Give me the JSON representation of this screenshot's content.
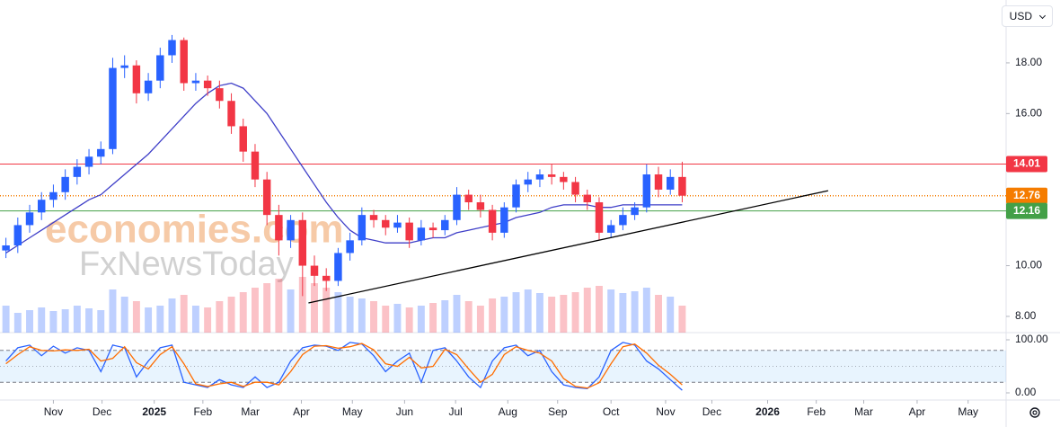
{
  "usd_button": "USD",
  "watermark": [
    "economies.com",
    "FxNewsToday"
  ],
  "chart_data": {
    "type": "candlestick",
    "open": [
      10.6,
      10.8,
      11.6,
      12.1,
      12.6,
      12.9,
      13.5,
      13.9,
      14.3,
      14.6,
      17.8,
      17.9,
      16.8,
      17.3,
      18.3,
      18.9,
      17.2,
      17.3,
      17.0,
      16.5,
      15.5,
      14.5,
      13.4,
      12.0,
      11.0,
      11.8,
      10.0,
      9.6,
      9.4,
      10.5,
      11.0,
      12.0,
      11.8,
      11.5,
      11.7,
      11.0,
      11.5,
      11.4,
      11.8,
      12.8,
      12.5,
      12.2,
      11.3,
      12.3,
      13.2,
      13.4,
      13.6,
      13.5,
      13.3,
      12.8,
      12.5,
      11.3,
      11.6,
      12.0,
      12.3,
      13.6,
      13.0,
      13.5
    ],
    "high": [
      11.1,
      11.9,
      12.4,
      12.9,
      13.2,
      13.8,
      14.2,
      14.6,
      14.9,
      18.2,
      18.3,
      18.1,
      17.6,
      18.6,
      19.1,
      19.0,
      17.6,
      17.5,
      17.3,
      16.8,
      15.8,
      14.8,
      13.7,
      12.4,
      12.0,
      12.1,
      10.4,
      9.9,
      10.7,
      11.3,
      12.3,
      12.2,
      12.0,
      12.0,
      11.9,
      11.8,
      11.7,
      12.0,
      13.1,
      13.0,
      12.8,
      12.4,
      12.5,
      13.4,
      13.7,
      13.8,
      14.0,
      13.7,
      13.5,
      13.0,
      12.7,
      11.8,
      12.3,
      12.5,
      14.0,
      13.9,
      13.8,
      14.1
    ],
    "low": [
      10.3,
      10.5,
      11.3,
      11.8,
      12.3,
      12.6,
      13.2,
      13.6,
      14.0,
      14.4,
      17.4,
      16.4,
      16.5,
      17.0,
      18.0,
      16.9,
      16.9,
      16.7,
      16.2,
      15.2,
      14.1,
      13.1,
      11.6,
      10.4,
      10.7,
      8.8,
      9.2,
      9.0,
      9.2,
      10.2,
      10.8,
      11.5,
      11.2,
      11.3,
      10.7,
      10.8,
      11.1,
      11.2,
      11.6,
      12.2,
      11.9,
      11.0,
      11.1,
      12.1,
      12.9,
      13.1,
      13.2,
      13.0,
      12.5,
      12.2,
      11.0,
      11.1,
      11.4,
      11.8,
      12.1,
      12.7,
      12.8,
      12.5
    ],
    "close": [
      10.8,
      11.6,
      12.1,
      12.6,
      12.9,
      13.5,
      13.9,
      14.3,
      14.6,
      17.8,
      17.9,
      16.8,
      17.3,
      18.3,
      18.9,
      17.2,
      17.3,
      17.0,
      16.5,
      15.5,
      14.5,
      13.4,
      12.0,
      11.0,
      11.8,
      10.0,
      9.6,
      9.4,
      10.5,
      11.0,
      12.0,
      11.8,
      11.5,
      11.7,
      11.0,
      11.5,
      11.4,
      11.8,
      12.8,
      12.5,
      12.2,
      11.3,
      12.3,
      13.2,
      13.4,
      13.6,
      13.5,
      13.3,
      12.8,
      12.5,
      11.3,
      11.6,
      12.0,
      12.3,
      13.6,
      13.0,
      13.5,
      12.76
    ],
    "up_color": "#2962ff",
    "down_color": "#f23645",
    "volume": [
      30,
      22,
      25,
      28,
      24,
      26,
      30,
      27,
      25,
      48,
      40,
      35,
      28,
      30,
      38,
      42,
      30,
      28,
      35,
      40,
      45,
      50,
      55,
      60,
      48,
      62,
      55,
      50,
      45,
      40,
      38,
      35,
      30,
      32,
      28,
      30,
      33,
      36,
      42,
      35,
      30,
      38,
      40,
      45,
      48,
      44,
      40,
      42,
      45,
      50,
      52,
      48,
      44,
      46,
      50,
      42,
      40,
      30
    ],
    "ma": {
      "color": "#3f3fc8",
      "values": [
        10.5,
        10.8,
        11.1,
        11.4,
        11.7,
        12.0,
        12.3,
        12.6,
        12.8,
        13.2,
        13.6,
        14.0,
        14.4,
        14.9,
        15.4,
        15.9,
        16.4,
        16.8,
        17.1,
        17.2,
        17.0,
        16.5,
        16.0,
        15.3,
        14.6,
        13.9,
        13.2,
        12.5,
        11.9,
        11.4,
        11.1,
        11.0,
        10.9,
        10.9,
        10.9,
        11.0,
        11.1,
        11.1,
        11.3,
        11.4,
        11.5,
        11.6,
        11.7,
        11.9,
        12.0,
        12.1,
        12.3,
        12.4,
        12.4,
        12.4,
        12.3,
        12.3,
        12.4,
        12.4,
        12.4,
        12.4,
        12.4,
        12.4
      ]
    },
    "ylim": [
      7.36,
      20.48
    ],
    "yticks": [
      {
        "value": 8,
        "label": "8.00"
      },
      {
        "value": 10,
        "label": "10.00"
      },
      {
        "value": 16,
        "label": "16.00"
      },
      {
        "value": 18,
        "label": "18.00"
      }
    ],
    "xlim": [
      -0.5,
      84.3
    ],
    "xticks": [
      {
        "value": 4.0,
        "label": "Nov"
      },
      {
        "value": 8.1,
        "label": "Dec"
      },
      {
        "value": 12.5,
        "label": "2025"
      },
      {
        "value": 16.6,
        "label": "Feb"
      },
      {
        "value": 20.6,
        "label": "Mar"
      },
      {
        "value": 24.9,
        "label": "Apr"
      },
      {
        "value": 29.2,
        "label": "May"
      },
      {
        "value": 33.6,
        "label": "Jun"
      },
      {
        "value": 37.9,
        "label": "Jul"
      },
      {
        "value": 42.3,
        "label": "Aug"
      },
      {
        "value": 46.5,
        "label": "Sep"
      },
      {
        "value": 51.0,
        "label": "Oct"
      },
      {
        "value": 55.6,
        "label": "Nov"
      },
      {
        "value": 59.5,
        "label": "Dec"
      },
      {
        "value": 64.2,
        "label": "2026"
      },
      {
        "value": 68.3,
        "label": "Feb"
      },
      {
        "value": 72.3,
        "label": "Mar"
      },
      {
        "value": 76.8,
        "label": "Apr"
      },
      {
        "value": 81.1,
        "label": "May"
      }
    ],
    "hlines": [
      {
        "value": 14.01,
        "color": "#f23645",
        "style": "solid"
      },
      {
        "value": 12.76,
        "color": "#f57c00",
        "style": "dotted"
      },
      {
        "value": 12.16,
        "color": "#43a047",
        "style": "solid"
      }
    ],
    "trendline": {
      "x": [
        25.5,
        69.3
      ],
      "y": [
        8.53,
        12.96
      ],
      "color": "#000000"
    },
    "stochastic": {
      "ylim": [
        0,
        100
      ],
      "yticks": [
        {
          "value": 0,
          "label": "0.00"
        },
        {
          "value": 100,
          "label": "100.00"
        }
      ],
      "levels": [
        20,
        50,
        80
      ],
      "series": [
        {
          "color": "#2962ff",
          "values": [
            60,
            85,
            90,
            70,
            88,
            75,
            85,
            80,
            40,
            90,
            85,
            30,
            60,
            85,
            90,
            20,
            15,
            10,
            25,
            15,
            10,
            30,
            10,
            20,
            60,
            85,
            90,
            88,
            80,
            95,
            92,
            70,
            40,
            60,
            75,
            20,
            80,
            85,
            60,
            30,
            10,
            60,
            85,
            90,
            70,
            80,
            40,
            15,
            10,
            8,
            30,
            80,
            95,
            90,
            60,
            45,
            25,
            5
          ]
        },
        {
          "color": "#ff6d00",
          "values": [
            55,
            72,
            87,
            80,
            79,
            81,
            80,
            82,
            60,
            65,
            87,
            57,
            45,
            72,
            87,
            55,
            17,
            12,
            17,
            20,
            12,
            20,
            20,
            15,
            40,
            72,
            88,
            89,
            84,
            87,
            93,
            81,
            55,
            50,
            67,
            47,
            50,
            82,
            72,
            45,
            20,
            35,
            72,
            87,
            80,
            75,
            60,
            27,
            12,
            9,
            19,
            55,
            87,
            92,
            75,
            52,
            35,
            15
          ]
        }
      ]
    }
  }
}
